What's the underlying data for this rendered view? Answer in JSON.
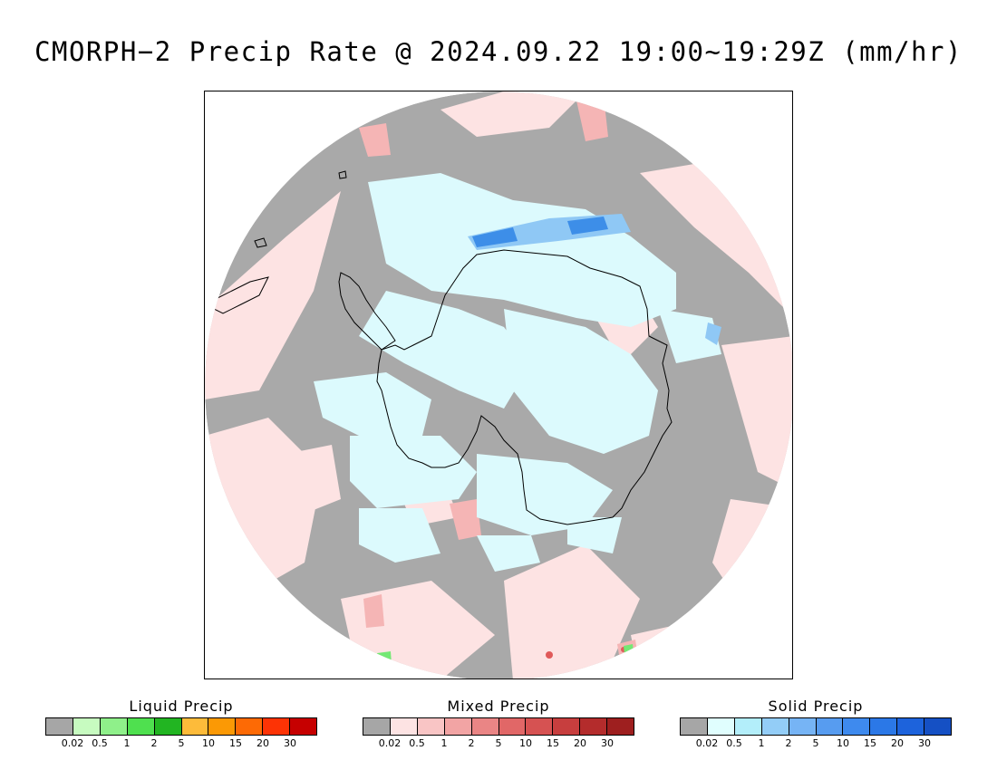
{
  "title": "CMORPH−2 Precip Rate @ 2024.09.22 19:00~19:29Z (mm/hr)",
  "map": {
    "projection": "south-polar-stereographic",
    "colors": {
      "no_precip": "#a9a9a9",
      "mixed_light": "#fde3e3",
      "mixed_medium": "#f5b5b5",
      "mixed_heavy": "#e05a5a",
      "solid_light": "#dcfafd",
      "solid_medium": "#8fc8f5",
      "solid_heavy": "#3d8ee8",
      "liquid_light": "#74e874",
      "coastline": "#000000"
    }
  },
  "legends": [
    {
      "title": "Liquid Precip",
      "colors": [
        "#a6a6a6",
        "#c7fbc0",
        "#8ff08a",
        "#4fe04f",
        "#22b522",
        "#fdbb3a",
        "#fb9905",
        "#fd6a05",
        "#fd3305",
        "#c60000"
      ],
      "ticks": [
        "0.02",
        "0.5",
        "1",
        "2",
        "5",
        "10",
        "15",
        "20",
        "30"
      ]
    },
    {
      "title": "Mixed Precip",
      "colors": [
        "#a6a6a6",
        "#fde3e3",
        "#f9c5c5",
        "#f2a4a4",
        "#ea8585",
        "#e16767",
        "#d65252",
        "#c73e3e",
        "#b42c2c",
        "#9e1f1f"
      ],
      "ticks": [
        "0.02",
        "0.5",
        "1",
        "2",
        "5",
        "10",
        "15",
        "20",
        "30"
      ]
    },
    {
      "title": "Solid Precip",
      "colors": [
        "#a6a6a6",
        "#e0fefe",
        "#b3eefa",
        "#93cdf7",
        "#76b4f5",
        "#579cf0",
        "#3e8aee",
        "#2b78e7",
        "#1d63dc",
        "#1550c4"
      ],
      "ticks": [
        "0.02",
        "0.5",
        "1",
        "2",
        "5",
        "10",
        "15",
        "20",
        "30"
      ]
    }
  ]
}
